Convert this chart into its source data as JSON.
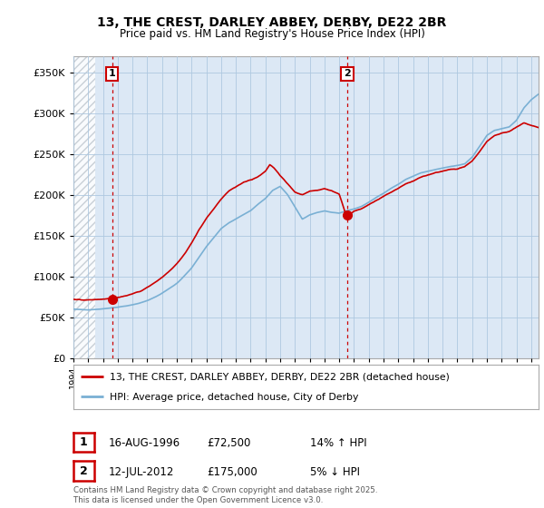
{
  "title": "13, THE CREST, DARLEY ABBEY, DERBY, DE22 2BR",
  "subtitle": "Price paid vs. HM Land Registry's House Price Index (HPI)",
  "legend_line1": "13, THE CREST, DARLEY ABBEY, DERBY, DE22 2BR (detached house)",
  "legend_line2": "HPI: Average price, detached house, City of Derby",
  "annotation1_date": "16-AUG-1996",
  "annotation1_price": "£72,500",
  "annotation1_hpi": "14% ↑ HPI",
  "annotation2_date": "12-JUL-2012",
  "annotation2_price": "£175,000",
  "annotation2_hpi": "5% ↓ HPI",
  "footer": "Contains HM Land Registry data © Crown copyright and database right 2025.\nThis data is licensed under the Open Government Licence v3.0.",
  "price_color": "#cc0000",
  "hpi_color": "#7ab0d4",
  "background_color": "#ffffff",
  "plot_bg_color": "#dce8f5",
  "grid_color": "#aec8e0",
  "vline_color": "#cc0000",
  "hatch_color": "#c0c8d0",
  "ylim": [
    0,
    370000
  ],
  "yticks": [
    0,
    50000,
    100000,
    150000,
    200000,
    250000,
    300000,
    350000
  ],
  "sale1_year": 1996.62,
  "sale1_price": 72500,
  "sale2_year": 2012.54,
  "sale2_price": 175000,
  "hatch_end": 1995.5,
  "xmin": 1994.0,
  "xmax": 2025.5
}
